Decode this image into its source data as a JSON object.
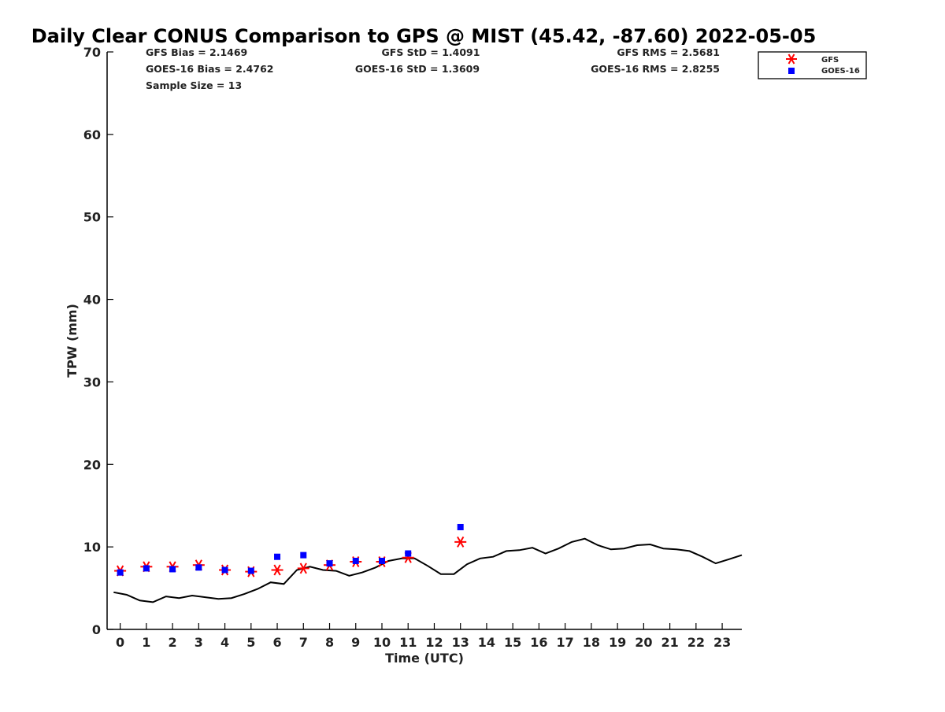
{
  "chart_data": {
    "type": "scatter",
    "title": "Daily Clear CONUS Comparison to GPS @ MIST (45.42, -87.60) 2022-05-05",
    "xlabel": "Time (UTC)",
    "ylabel": "TPW (mm)",
    "xlim": [
      -0.5,
      23.75
    ],
    "ylim": [
      0,
      70
    ],
    "xticks": [
      0,
      1,
      2,
      3,
      4,
      5,
      6,
      7,
      8,
      9,
      10,
      11,
      12,
      13,
      14,
      15,
      16,
      17,
      18,
      19,
      20,
      21,
      22,
      23
    ],
    "yticks": [
      0,
      10,
      20,
      30,
      40,
      50,
      60,
      70
    ],
    "grid": false,
    "legend_position": "top-right",
    "stats": {
      "gfs_bias": "GFS Bias = 2.1469",
      "goes_bias": "GOES-16 Bias = 2.4762",
      "sample_size": "Sample Size = 13",
      "gfs_std": "GFS StD = 1.4091",
      "goes_std": "GOES-16 StD = 1.3609",
      "gfs_rms": "GFS RMS = 2.5681",
      "goes_rms": "GOES-16 RMS = 2.8255"
    },
    "series": [
      {
        "name": "GFS",
        "marker": "asterisk",
        "color": "#ff0000",
        "x": [
          0,
          1,
          2,
          3,
          4,
          5,
          6,
          7,
          8,
          9,
          10,
          11,
          13
        ],
        "y": [
          7.1,
          7.6,
          7.6,
          7.8,
          7.2,
          7.0,
          7.2,
          7.4,
          7.8,
          8.2,
          8.2,
          8.7,
          10.6
        ]
      },
      {
        "name": "GOES-16",
        "marker": "square",
        "color": "#0000ff",
        "x": [
          0,
          1,
          2,
          3,
          4,
          5,
          6,
          7,
          8,
          9,
          10,
          11,
          13
        ],
        "y": [
          6.9,
          7.4,
          7.3,
          7.5,
          7.2,
          7.1,
          8.8,
          9.0,
          8.0,
          8.3,
          8.3,
          9.2,
          12.4
        ]
      },
      {
        "name": "GPS",
        "marker": "line",
        "color": "#000000",
        "x": [
          -0.25,
          0.25,
          0.75,
          1.25,
          1.75,
          2.25,
          2.75,
          3.25,
          3.75,
          4.25,
          4.75,
          5.25,
          5.75,
          6.25,
          6.75,
          7.25,
          7.75,
          8.25,
          8.75,
          9.25,
          9.75,
          10.25,
          10.75,
          11.25,
          11.75,
          12.25,
          12.75,
          13.25,
          13.75,
          14.25,
          14.75,
          15.25,
          15.75,
          16.25,
          16.75,
          17.25,
          17.75,
          18.25,
          18.75,
          19.25,
          19.75,
          20.25,
          20.75,
          21.25,
          21.75,
          22.25,
          22.75,
          23.25,
          23.75
        ],
        "y": [
          4.5,
          4.2,
          3.5,
          3.3,
          4.0,
          3.8,
          4.1,
          3.9,
          3.7,
          3.8,
          4.3,
          4.9,
          5.7,
          5.5,
          7.2,
          7.6,
          7.2,
          7.1,
          6.5,
          6.9,
          7.5,
          8.3,
          8.6,
          8.6,
          7.7,
          6.7,
          6.7,
          7.9,
          8.6,
          8.8,
          9.5,
          9.6,
          9.9,
          9.2,
          9.8,
          10.6,
          11.0,
          10.2,
          9.7,
          9.8,
          10.2,
          10.3,
          9.8,
          9.7,
          9.5,
          8.8,
          8.0,
          8.5,
          9.0
        ]
      }
    ]
  }
}
